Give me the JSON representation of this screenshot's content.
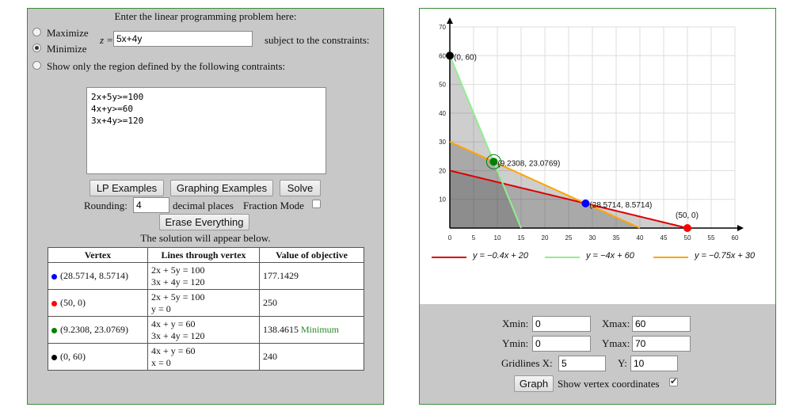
{
  "left": {
    "header": "Enter the linear programming problem here:",
    "maximize_label": "Maximize",
    "minimize_label": "Minimize",
    "z_prefix": "z =",
    "objective_value": "5x+4y",
    "subject_to": "subject to the constraints:",
    "region_label": "Show only the region defined by the following contraints:",
    "constraints": "2x+5y>=100\n4x+y>=60\n3x+4y>=120",
    "buttons": {
      "lp_examples": "LP Examples",
      "graphing_examples": "Graphing Examples",
      "solve": "Solve",
      "erase": "Erase Everything"
    },
    "rounding_label": "Rounding:",
    "rounding_value": "4",
    "decimal_label": "decimal places",
    "fraction_label": "Fraction Mode",
    "solution_note": "The solution will appear below.",
    "table": {
      "headers": [
        "Vertex",
        "Lines through vertex",
        "Value of objective"
      ],
      "rows": [
        {
          "color": "#0000ff",
          "vertex": "(28.5714, 8.5714)",
          "line1": "2x + 5y = 100",
          "line2": "3x + 4y = 120",
          "value": "177.1429",
          "note": ""
        },
        {
          "color": "#ff0000",
          "vertex": "(50, 0)",
          "line1": "2x + 5y = 100",
          "line2": "y = 0",
          "value": "250",
          "note": ""
        },
        {
          "color": "#008000",
          "vertex": "(9.2308, 23.0769)",
          "line1": "4x + y = 60",
          "line2": "3x + 4y = 120",
          "value": "138.4615",
          "note": "Minimum"
        },
        {
          "color": "#000000",
          "vertex": "(0, 60)",
          "line1": "4x + y = 60",
          "line2": "x = 0",
          "value": "240",
          "note": ""
        }
      ]
    }
  },
  "chart_data": {
    "type": "line",
    "xlim": [
      0,
      60
    ],
    "ylim": [
      0,
      70
    ],
    "grid": true,
    "x_ticks": [
      0,
      5,
      10,
      15,
      20,
      25,
      30,
      35,
      40,
      45,
      50,
      55,
      60
    ],
    "y_ticks": [
      10,
      20,
      30,
      40,
      50,
      60,
      70
    ],
    "series": [
      {
        "name": "y = −0.4x + 20",
        "color": "#dd0000",
        "slope": -0.4,
        "intercept": 20
      },
      {
        "name": "y = −4x + 60",
        "color": "#90ee90",
        "slope": -4,
        "intercept": 60
      },
      {
        "name": "y = −0.75x + 30",
        "color": "#ffa500",
        "slope": -0.75,
        "intercept": 30
      }
    ],
    "vertices": [
      {
        "label": "(0, 60)",
        "x": 0,
        "y": 60,
        "color": "#000000"
      },
      {
        "label": "(9.2308, 23.0769)",
        "x": 9.2308,
        "y": 23.0769,
        "color": "#008000",
        "highlight": true
      },
      {
        "label": "(28.5714, 8.5714)",
        "x": 28.5714,
        "y": 8.5714,
        "color": "#0000ff"
      },
      {
        "label": "(50, 0)",
        "x": 50,
        "y": 0,
        "color": "#ff0000"
      }
    ]
  },
  "right": {
    "xmin_label": "Xmin:",
    "xmin": "0",
    "xmax_label": "Xmax:",
    "xmax": "60",
    "ymin_label": "Ymin:",
    "ymin": "0",
    "ymax_label": "Ymax:",
    "ymax": "70",
    "gridx_label": "Gridlines X:",
    "gridx": "5",
    "gridy_label": "Y:",
    "gridy": "10",
    "graph_button": "Graph",
    "show_vertex_label": "Show vertex coordinates",
    "show_vertex_checked": true
  }
}
